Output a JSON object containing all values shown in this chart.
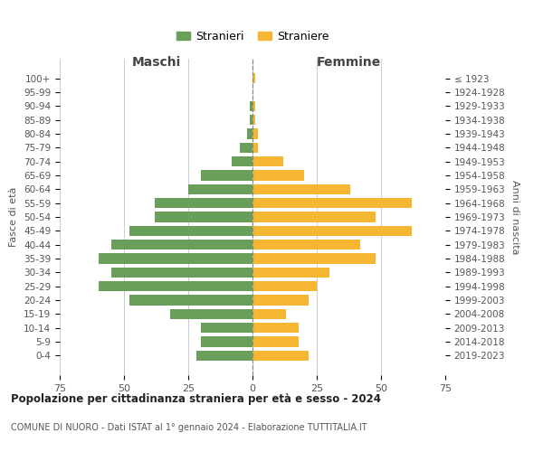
{
  "age_groups": [
    "0-4",
    "5-9",
    "10-14",
    "15-19",
    "20-24",
    "25-29",
    "30-34",
    "35-39",
    "40-44",
    "45-49",
    "50-54",
    "55-59",
    "60-64",
    "65-69",
    "70-74",
    "75-79",
    "80-84",
    "85-89",
    "90-94",
    "95-99",
    "100+"
  ],
  "birth_years": [
    "2019-2023",
    "2014-2018",
    "2009-2013",
    "2004-2008",
    "1999-2003",
    "1994-1998",
    "1989-1993",
    "1984-1988",
    "1979-1983",
    "1974-1978",
    "1969-1973",
    "1964-1968",
    "1959-1963",
    "1954-1958",
    "1949-1953",
    "1944-1948",
    "1939-1943",
    "1934-1938",
    "1929-1933",
    "1924-1928",
    "≤ 1923"
  ],
  "males": [
    22,
    20,
    20,
    32,
    48,
    60,
    55,
    60,
    55,
    48,
    38,
    38,
    25,
    20,
    8,
    5,
    2,
    1,
    1,
    0,
    0
  ],
  "females": [
    22,
    18,
    18,
    13,
    22,
    25,
    30,
    48,
    42,
    62,
    48,
    62,
    38,
    20,
    12,
    2,
    2,
    1,
    1,
    0,
    1
  ],
  "male_color": "#6a9f5b",
  "female_color": "#f5b731",
  "male_label": "Stranieri",
  "female_label": "Straniere",
  "title": "Popolazione per cittadinanza straniera per età e sesso - 2024",
  "subtitle": "COMUNE DI NUORO - Dati ISTAT al 1° gennaio 2024 - Elaborazione TUTTITALIA.IT",
  "xlabel_left": "Maschi",
  "xlabel_right": "Femmine",
  "ylabel_left": "Fasce di età",
  "ylabel_right": "Anni di nascita",
  "xlim": 75,
  "background_color": "#ffffff",
  "grid_color": "#cccccc"
}
